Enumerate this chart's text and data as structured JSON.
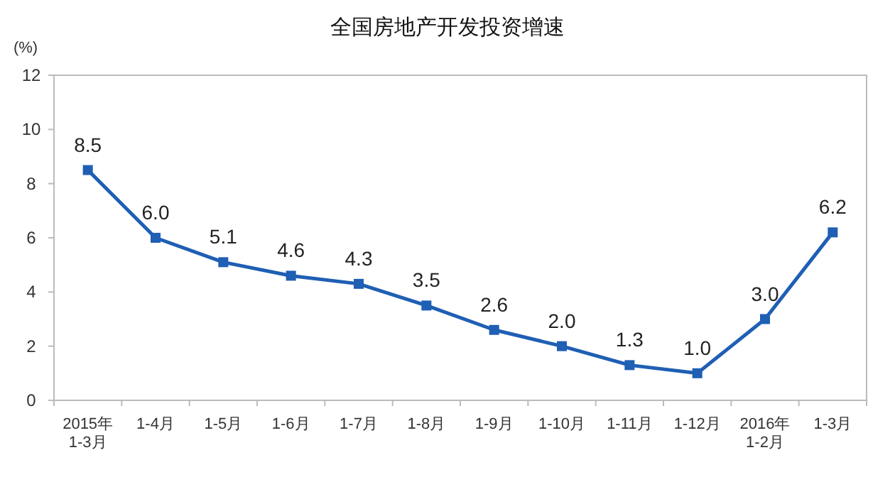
{
  "chart_data": {
    "type": "line",
    "title": "全国房地产开发投资增速",
    "ylabel": "(%)",
    "categories": [
      "2015年\n1-3月",
      "1-4月",
      "1-5月",
      "1-6月",
      "1-7月",
      "1-8月",
      "1-9月",
      "1-10月",
      "1-11月",
      "1-12月",
      "2016年\n1-2月",
      "1-3月"
    ],
    "series": [
      {
        "color": "#1f5fb4",
        "values": [
          8.5,
          6.0,
          5.1,
          4.6,
          4.3,
          3.5,
          2.6,
          2.0,
          1.3,
          1.0,
          3.0,
          6.2
        ],
        "value_labels": [
          "8.5",
          "6.0",
          "5.1",
          "4.6",
          "4.3",
          "3.5",
          "2.6",
          "2.0",
          "1.3",
          "1.0",
          "3.0",
          "6.2"
        ]
      }
    ],
    "ylim": [
      0,
      12
    ],
    "yticks": [
      0,
      2,
      4,
      6,
      8,
      10,
      12
    ],
    "grid": false,
    "marker": "square",
    "line_style": "solid"
  }
}
